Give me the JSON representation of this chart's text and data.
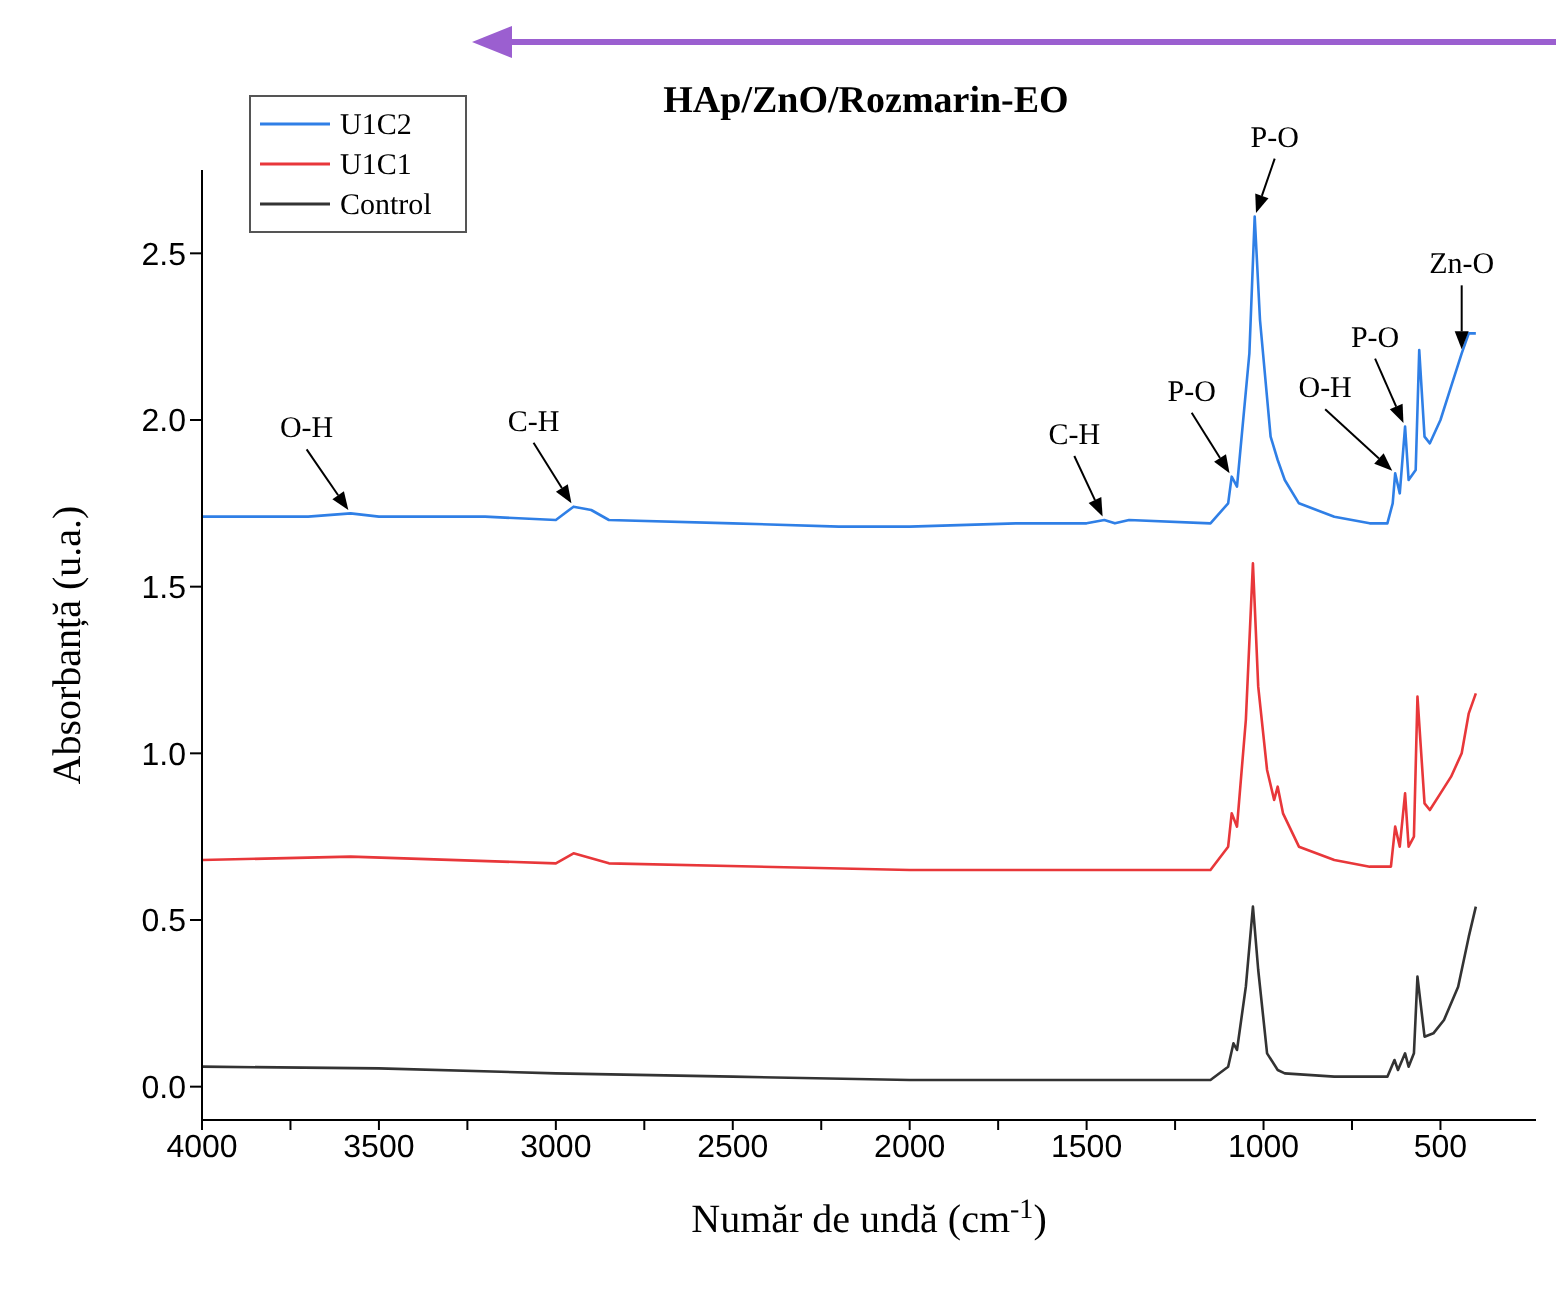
{
  "chart_data": {
    "type": "line",
    "title": "HAp/ZnO/Rozmarin-EO",
    "xlabel": "Număr de undă (cm$^{-1}$)",
    "ylabel": "Absorbanță (u.a.)",
    "xlim": [
      4000,
      230
    ],
    "xticks": [
      4000,
      {
        "value": 3750,
        "label": null
      },
      3500,
      {
        "value": 3250,
        "label": null
      },
      3000,
      {
        "value": 2750,
        "label": null
      },
      2500,
      {
        "value": 2250,
        "label": null
      },
      2000,
      {
        "value": 1750,
        "label": null
      },
      1500,
      {
        "value": 1250,
        "label": null
      },
      1000,
      {
        "value": 750,
        "label": null
      },
      500
    ],
    "ylim": [
      -0.1,
      2.75
    ],
    "yticks": [
      {
        "value": 0,
        "label": "0.0"
      },
      0.5,
      {
        "value": 1,
        "label": "1.0"
      },
      1.5,
      {
        "value": 2,
        "label": "2.0"
      },
      2.5
    ],
    "legend": "top left",
    "grid": false,
    "marker": "none",
    "line_style": "solid",
    "series": [
      {
        "name": "U1C2",
        "color": "#2f7fe6",
        "x": [
          4000,
          3700,
          3580,
          3500,
          3200,
          3000,
          2950,
          2900,
          2850,
          2500,
          2200,
          2000,
          1700,
          1500,
          1450,
          1420,
          1380,
          1150,
          1100,
          1090,
          1075,
          1040,
          1025,
          1010,
          980,
          960,
          940,
          900,
          800,
          700,
          650,
          635,
          628,
          615,
          600,
          590,
          570,
          560,
          545,
          530,
          500,
          470,
          440,
          420,
          400
        ],
        "values": [
          1.71,
          1.71,
          1.72,
          1.71,
          1.71,
          1.7,
          1.74,
          1.73,
          1.7,
          1.69,
          1.68,
          1.68,
          1.69,
          1.69,
          1.7,
          1.69,
          1.7,
          1.69,
          1.75,
          1.83,
          1.8,
          2.2,
          2.61,
          2.3,
          1.95,
          1.88,
          1.82,
          1.75,
          1.71,
          1.69,
          1.69,
          1.75,
          1.84,
          1.78,
          1.98,
          1.82,
          1.85,
          2.21,
          1.95,
          1.93,
          2.0,
          2.1,
          2.2,
          2.26,
          2.26
        ]
      },
      {
        "name": "U1C1",
        "color": "#e8373a",
        "x": [
          4000,
          3580,
          3000,
          2950,
          2850,
          2000,
          1500,
          1150,
          1100,
          1090,
          1075,
          1050,
          1030,
          1015,
          990,
          970,
          960,
          945,
          900,
          800,
          700,
          640,
          628,
          615,
          600,
          590,
          575,
          565,
          545,
          530,
          500,
          470,
          440,
          420,
          400
        ],
        "values": [
          0.68,
          0.69,
          0.67,
          0.7,
          0.67,
          0.65,
          0.65,
          0.65,
          0.72,
          0.82,
          0.78,
          1.1,
          1.57,
          1.2,
          0.95,
          0.86,
          0.9,
          0.82,
          0.72,
          0.68,
          0.66,
          0.66,
          0.78,
          0.72,
          0.88,
          0.72,
          0.75,
          1.17,
          0.85,
          0.83,
          0.88,
          0.93,
          1.0,
          1.12,
          1.18
        ]
      },
      {
        "name": "Control",
        "color": "#333333",
        "x": [
          4000,
          3500,
          3000,
          2500,
          2000,
          1500,
          1150,
          1100,
          1085,
          1075,
          1050,
          1030,
          1015,
          990,
          960,
          940,
          800,
          650,
          630,
          620,
          600,
          590,
          575,
          565,
          545,
          520,
          490,
          450,
          420,
          400
        ],
        "values": [
          0.06,
          0.055,
          0.04,
          0.03,
          0.02,
          0.02,
          0.02,
          0.06,
          0.13,
          0.11,
          0.3,
          0.54,
          0.35,
          0.1,
          0.05,
          0.04,
          0.03,
          0.03,
          0.08,
          0.05,
          0.1,
          0.06,
          0.1,
          0.33,
          0.15,
          0.16,
          0.2,
          0.3,
          0.45,
          0.54
        ]
      }
    ],
    "annotations": [
      {
        "text": "O-H",
        "x": 3580,
        "y": 1.72
      },
      {
        "text": "C-H",
        "x": 2950,
        "y": 1.74
      },
      {
        "text": "C-H",
        "x": 1450,
        "y": 1.7
      },
      {
        "text": "P-O",
        "x": 1090,
        "y": 1.83
      },
      {
        "text": "P-O",
        "x": 1025,
        "y": 2.61
      },
      {
        "text": "O-H",
        "x": 628,
        "y": 1.84
      },
      {
        "text": "P-O",
        "x": 600,
        "y": 1.98
      },
      {
        "text": "Zn-O",
        "x": 440,
        "y": 2.2
      }
    ]
  }
}
